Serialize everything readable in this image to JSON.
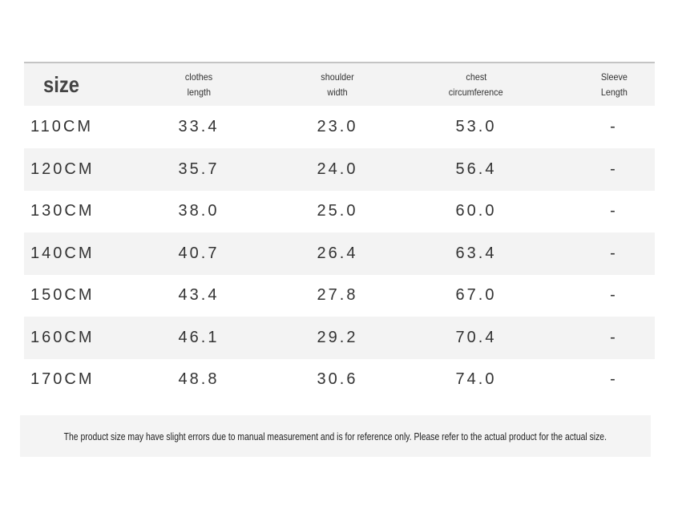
{
  "table": {
    "header": [
      [
        "size"
      ],
      [
        "clothes",
        "length"
      ],
      [
        "shoulder",
        "width"
      ],
      [
        "chest",
        "circumference"
      ],
      [
        "Sleeve",
        "Length"
      ]
    ],
    "rows": [
      [
        "110CM",
        "33.4",
        "23.0",
        "53.0",
        "-"
      ],
      [
        "120CM",
        "35.7",
        "24.0",
        "56.4",
        "-"
      ],
      [
        "130CM",
        "38.0",
        "25.0",
        "60.0",
        "-"
      ],
      [
        "140CM",
        "40.7",
        "26.4",
        "63.4",
        "-"
      ],
      [
        "150CM",
        "43.4",
        "27.8",
        "67.0",
        "-"
      ],
      [
        "160CM",
        "46.1",
        "29.2",
        "70.4",
        "-"
      ],
      [
        "170CM",
        "48.8",
        "30.6",
        "74.0",
        "-"
      ]
    ]
  },
  "footnote": "The product size may have slight errors due to manual measurement and is for reference only. Please refer to the actual product for the actual size."
}
